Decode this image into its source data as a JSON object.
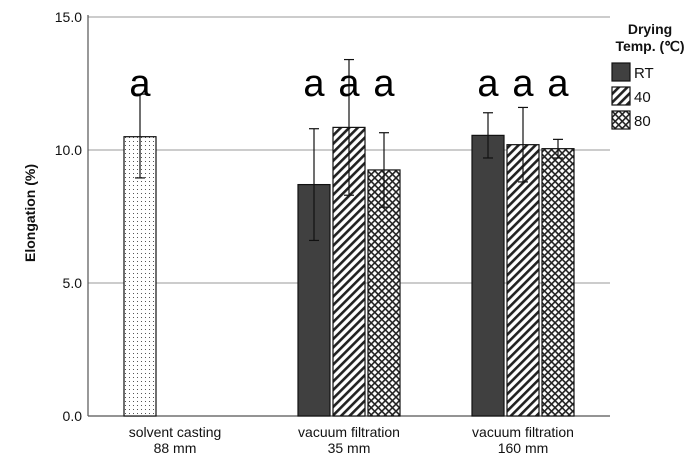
{
  "chart_data": {
    "type": "bar",
    "ylabel": "Elongation (%)",
    "ylim": [
      0,
      15
    ],
    "yticks": [
      0,
      5,
      10,
      15
    ],
    "ytick_labels": [
      "0.0",
      "5.0",
      "10.0",
      "15.0"
    ],
    "grid": "horizontal",
    "categories": [
      {
        "id": "solvent",
        "line1": "solvent casting",
        "line2": "88 mm"
      },
      {
        "id": "vf35",
        "line1": "vacuum filtration",
        "line2": "35 mm"
      },
      {
        "id": "vf160",
        "line1": "vacuum filtration",
        "line2": "160 mm"
      }
    ],
    "legend": {
      "title_line1": "Drying",
      "title_line2": "Temp. (℃)",
      "position": "right",
      "items": [
        {
          "label": "RT",
          "pattern": "solid-dark"
        },
        {
          "label": "40",
          "pattern": "diagonal-hatch"
        },
        {
          "label": "80",
          "pattern": "crosshatch"
        }
      ]
    },
    "bars": [
      {
        "category": "solvent",
        "slot": 0,
        "pattern": "dotted",
        "value": 10.5,
        "err_low": 8.95,
        "err_high": 12.1,
        "annotation": "a"
      },
      {
        "category": "vf35",
        "slot": 0,
        "pattern": "solid-dark",
        "value": 8.7,
        "err_low": 6.6,
        "err_high": 10.8,
        "annotation": "a"
      },
      {
        "category": "vf35",
        "slot": 1,
        "pattern": "diagonal-hatch",
        "value": 10.85,
        "err_low": 8.3,
        "err_high": 13.4,
        "annotation": "a"
      },
      {
        "category": "vf35",
        "slot": 2,
        "pattern": "crosshatch",
        "value": 9.25,
        "err_low": 7.85,
        "err_high": 10.65,
        "annotation": "a"
      },
      {
        "category": "vf160",
        "slot": 0,
        "pattern": "solid-dark",
        "value": 10.55,
        "err_low": 9.7,
        "err_high": 11.4,
        "annotation": "a"
      },
      {
        "category": "vf160",
        "slot": 1,
        "pattern": "diagonal-hatch",
        "value": 10.2,
        "err_low": 8.8,
        "err_high": 11.6,
        "annotation": "a"
      },
      {
        "category": "vf160",
        "slot": 2,
        "pattern": "crosshatch",
        "value": 10.05,
        "err_low": 9.7,
        "err_high": 10.4,
        "annotation": "a"
      }
    ],
    "colors": {
      "dark_bar": "#404040",
      "grid": "#bbbbbb",
      "axis": "#555555"
    }
  }
}
